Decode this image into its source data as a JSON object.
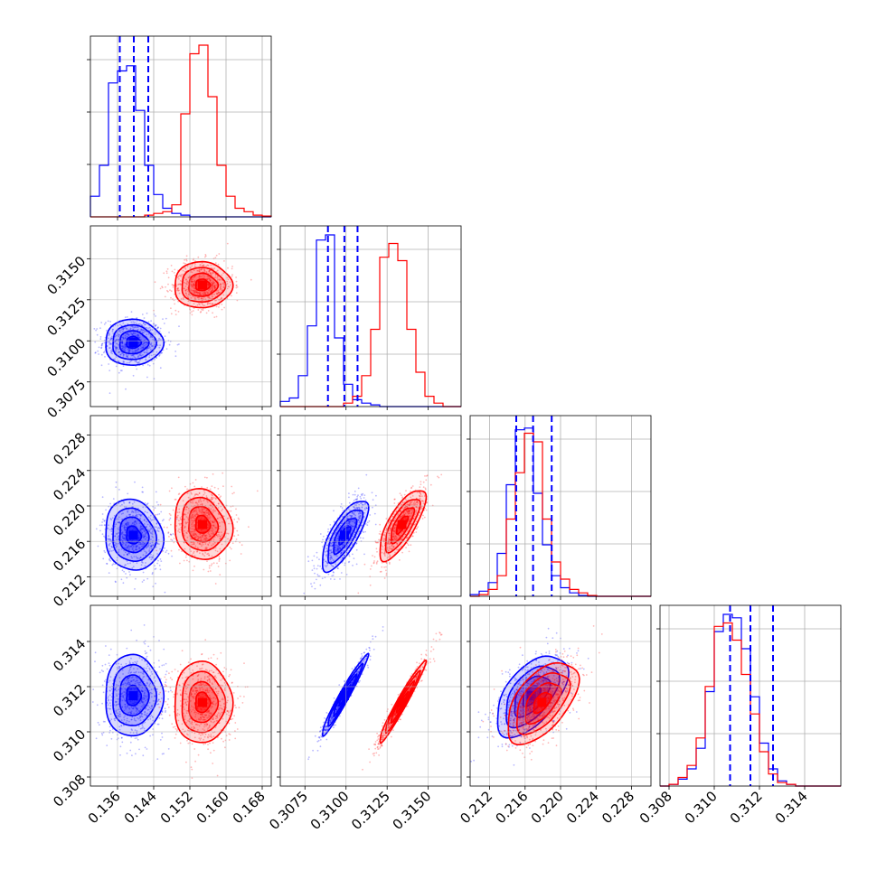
{
  "chart_data": {
    "type": "scatter",
    "title": "",
    "colors": {
      "blue": "#0000ff",
      "red": "#ff0000",
      "grid": "#b0b0b0"
    },
    "parameters": [
      {
        "range": [
          0.13,
          0.17
        ],
        "ticks": [
          "0.136",
          "0.144",
          "0.152",
          "0.160",
          "0.168"
        ],
        "tick_values": [
          0.136,
          0.144,
          0.152,
          0.16,
          0.168
        ]
      },
      {
        "range": [
          0.306,
          0.317
        ],
        "ticks": [
          "0.3075",
          "0.3100",
          "0.3125",
          "0.3150"
        ],
        "tick_values": [
          0.3075,
          0.31,
          0.3125,
          0.315
        ]
      },
      {
        "range": [
          0.2098,
          0.2302
        ],
        "ticks": [
          "0.212",
          "0.216",
          "0.220",
          "0.224",
          "0.228"
        ],
        "tick_values": [
          0.212,
          0.216,
          0.22,
          0.224,
          0.228
        ]
      },
      {
        "range": [
          0.3076,
          0.3156
        ],
        "ticks": [
          "0.308",
          "0.310",
          "0.312",
          "0.314"
        ],
        "tick_values": [
          0.308,
          0.31,
          0.312,
          0.314
        ]
      }
    ],
    "series": [
      {
        "color": "blue",
        "mean": [
          0.1395,
          0.3099,
          0.2167,
          0.3116
        ],
        "sd": [
          0.0032,
          0.0007,
          0.002,
          0.0009
        ]
      },
      {
        "color": "red",
        "mean": [
          0.1548,
          0.3134,
          0.2179,
          0.3113
        ],
        "sd": [
          0.0032,
          0.0007,
          0.002,
          0.0009
        ]
      }
    ],
    "quantiles_blue": [
      [
        0.1365,
        0.1396,
        0.1428
      ],
      [
        0.3089,
        0.3099,
        0.3107
      ],
      [
        0.215,
        0.2169,
        0.219
      ],
      [
        0.3107,
        0.3116,
        0.3126
      ]
    ],
    "histograms": [
      {
        "bins": 20,
        "blue": [
          0.12,
          0.3,
          0.78,
          0.85,
          0.88,
          0.62,
          0.3,
          0.13,
          0.05,
          0.02,
          0.01,
          0,
          0,
          0,
          0,
          0,
          0,
          0,
          0,
          0
        ],
        "red": [
          0,
          0,
          0,
          0,
          0,
          0,
          0.01,
          0.02,
          0.03,
          0.07,
          0.6,
          0.95,
          1.0,
          0.7,
          0.3,
          0.12,
          0.05,
          0.03,
          0.01,
          0.005
        ]
      },
      {
        "bins": 20,
        "blue": [
          0.03,
          0.05,
          0.18,
          0.47,
          0.97,
          1.0,
          0.4,
          0.13,
          0.04,
          0.02,
          0.01,
          0,
          0,
          0,
          0,
          0,
          0,
          0,
          0,
          0
        ],
        "red": [
          0,
          0,
          0,
          0,
          0,
          0,
          0,
          0.02,
          0.06,
          0.18,
          0.45,
          0.87,
          0.95,
          0.85,
          0.45,
          0.2,
          0.06,
          0.02,
          0,
          0
        ]
      },
      {
        "bins": 20,
        "blue": [
          0.01,
          0.03,
          0.08,
          0.25,
          0.65,
          0.97,
          0.98,
          0.6,
          0.3,
          0.12,
          0.05,
          0.02,
          0.005,
          0,
          0,
          0,
          0,
          0,
          0,
          0
        ],
        "red": [
          0,
          0.01,
          0.04,
          0.12,
          0.45,
          0.72,
          0.95,
          0.9,
          0.45,
          0.2,
          0.1,
          0.04,
          0.02,
          0.005,
          0,
          0,
          0,
          0,
          0,
          0
        ]
      },
      {
        "bins": 20,
        "blue": [
          0,
          0.01,
          0.04,
          0.1,
          0.22,
          0.55,
          0.9,
          1.0,
          0.98,
          0.8,
          0.52,
          0.25,
          0.1,
          0.03,
          0.01,
          0,
          0,
          0,
          0,
          0
        ],
        "red": [
          0,
          0.01,
          0.05,
          0.12,
          0.28,
          0.58,
          0.93,
          0.95,
          0.85,
          0.65,
          0.42,
          0.2,
          0.07,
          0.02,
          0.01,
          0,
          0,
          0,
          0,
          0
        ]
      }
    ],
    "correlations": {
      "1-0": {
        "blue": 0.0,
        "red": 0.0
      },
      "2-0": {
        "blue": -0.1,
        "red": -0.1
      },
      "2-1": {
        "blue": 0.75,
        "red": 0.75
      },
      "3-0": {
        "blue": 0.0,
        "red": 0.0
      },
      "3-1": {
        "blue": 0.97,
        "red": 0.97
      },
      "3-2": {
        "blue": 0.55,
        "red": 0.55
      }
    }
  }
}
